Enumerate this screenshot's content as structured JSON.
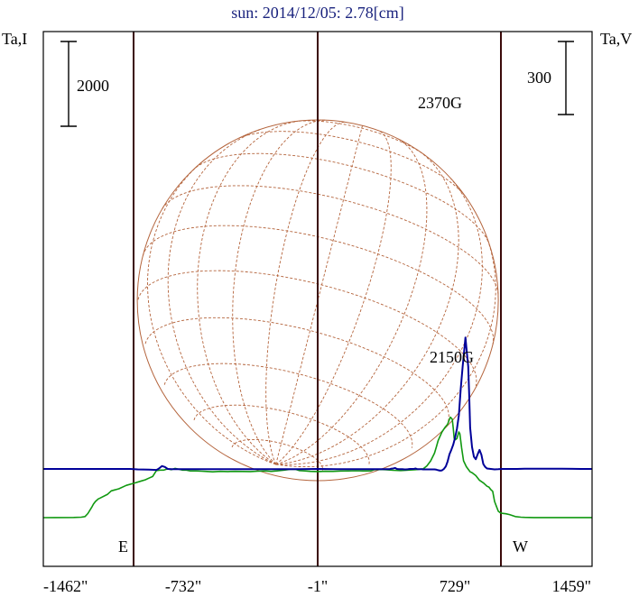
{
  "chart_data": {
    "type": "line",
    "title": "sun: 2014/12/05: 2.78[cm]",
    "left_axis_label": "Ta,I",
    "right_axis_label": "Ta,V",
    "left_scale_label": "2000",
    "right_scale_label": "300",
    "x_ticks": [
      "-1462\"",
      "-732\"",
      "-1\"",
      "729\"",
      "1459\""
    ],
    "limb_labels": {
      "east": "E",
      "west": "W"
    },
    "annotations": [
      "2370G",
      "2150G"
    ],
    "colors": {
      "title": "#1a237e",
      "intensity": "#119911",
      "polarization": "#000099",
      "solar_grid": "#b4643c",
      "markers": "#3b0a0a",
      "frame": "#000000"
    },
    "series": [
      {
        "points": [
          [
            -1462,
            -21
          ],
          [
            -1400,
            -19
          ],
          [
            -1300,
            -16
          ],
          [
            -1260,
            -10
          ],
          [
            -1240,
            5
          ],
          [
            -1225,
            75
          ],
          [
            -1205,
            220
          ],
          [
            -1195,
            300
          ],
          [
            -1185,
            360
          ],
          [
            -1170,
            420
          ],
          [
            -1160,
            440
          ],
          [
            -1120,
            530
          ],
          [
            -1100,
            610
          ],
          [
            -1060,
            660
          ],
          [
            -1020,
            740
          ],
          [
            -980,
            790
          ],
          [
            -940,
            845
          ],
          [
            -920,
            870
          ],
          [
            -900,
            910
          ],
          [
            -880,
            950
          ],
          [
            -860,
            1090
          ],
          [
            -840,
            1100
          ],
          [
            -820,
            1100
          ],
          [
            -800,
            1130
          ],
          [
            -780,
            1110
          ],
          [
            -760,
            1140
          ],
          [
            -740,
            1120
          ],
          [
            -720,
            1100
          ],
          [
            -700,
            1100
          ],
          [
            -680,
            1080
          ],
          [
            -650,
            1080
          ],
          [
            -620,
            1075
          ],
          [
            -600,
            1070
          ],
          [
            -560,
            1060
          ],
          [
            -520,
            1070
          ],
          [
            -480,
            1065
          ],
          [
            -440,
            1070
          ],
          [
            -400,
            1068
          ],
          [
            -360,
            1065
          ],
          [
            -320,
            1075
          ],
          [
            -280,
            1080
          ],
          [
            -250,
            1070
          ],
          [
            -220,
            1080
          ],
          [
            -180,
            1100
          ],
          [
            -150,
            1120
          ],
          [
            -120,
            1120
          ],
          [
            -100,
            1090
          ],
          [
            -70,
            1080
          ],
          [
            -40,
            1070
          ],
          [
            0,
            1065
          ],
          [
            40,
            1072
          ],
          [
            80,
            1070
          ],
          [
            120,
            1078
          ],
          [
            160,
            1080
          ],
          [
            200,
            1085
          ],
          [
            240,
            1080
          ],
          [
            280,
            1080
          ],
          [
            300,
            1110
          ],
          [
            330,
            1115
          ],
          [
            360,
            1110
          ],
          [
            400,
            1095
          ],
          [
            440,
            1090
          ],
          [
            480,
            1100
          ],
          [
            520,
            1110
          ],
          [
            560,
            1130
          ],
          [
            580,
            1200
          ],
          [
            600,
            1320
          ],
          [
            620,
            1500
          ],
          [
            630,
            1640
          ],
          [
            640,
            1800
          ],
          [
            660,
            2000
          ],
          [
            675,
            2100
          ],
          [
            690,
            2180
          ],
          [
            700,
            2300
          ],
          [
            705,
            2350
          ],
          [
            715,
            2300
          ],
          [
            720,
            2090
          ],
          [
            725,
            1850
          ],
          [
            732,
            1820
          ],
          [
            740,
            1850
          ],
          [
            750,
            2000
          ],
          [
            755,
            1960
          ],
          [
            765,
            1620
          ],
          [
            775,
            1320
          ],
          [
            790,
            1180
          ],
          [
            800,
            1120
          ],
          [
            810,
            1060
          ],
          [
            820,
            1040
          ],
          [
            840,
            970
          ],
          [
            860,
            860
          ],
          [
            880,
            800
          ],
          [
            890,
            760
          ],
          [
            900,
            720
          ],
          [
            910,
            700
          ],
          [
            920,
            640
          ],
          [
            930,
            600
          ],
          [
            940,
            360
          ],
          [
            950,
            240
          ],
          [
            960,
            130
          ],
          [
            970,
            95
          ],
          [
            980,
            80
          ],
          [
            1000,
            70
          ],
          [
            1020,
            50
          ],
          [
            1050,
            5
          ],
          [
            1080,
            -10
          ],
          [
            1100,
            -15
          ],
          [
            1150,
            -20
          ],
          [
            1459,
            -20
          ]
        ]
      },
      {
        "points": [
          [
            -1462,
            0
          ],
          [
            -1400,
            0
          ],
          [
            -1300,
            0
          ],
          [
            -1200,
            0
          ],
          [
            -1100,
            0
          ],
          [
            -1000,
            0
          ],
          [
            -960,
            -2
          ],
          [
            -900,
            -3
          ],
          [
            -860,
            -4
          ],
          [
            -850,
            0
          ],
          [
            -840,
            6
          ],
          [
            -830,
            12
          ],
          [
            -815,
            8
          ],
          [
            -800,
            0
          ],
          [
            -780,
            -1
          ],
          [
            -760,
            -1
          ],
          [
            -740,
            -1
          ],
          [
            -700,
            -1
          ],
          [
            -600,
            -1
          ],
          [
            -500,
            -1
          ],
          [
            -400,
            -1
          ],
          [
            -320,
            -1
          ],
          [
            -300,
            -1
          ],
          [
            -250,
            -1
          ],
          [
            -200,
            -1
          ],
          [
            -100,
            -1
          ],
          [
            0,
            0
          ],
          [
            100,
            -1
          ],
          [
            200,
            -1
          ],
          [
            300,
            -1
          ],
          [
            380,
            -1
          ],
          [
            390,
            1
          ],
          [
            400,
            2
          ],
          [
            410,
            4
          ],
          [
            420,
            0
          ],
          [
            430,
            -1
          ],
          [
            440,
            -1
          ],
          [
            450,
            -1
          ],
          [
            460,
            -2
          ],
          [
            470,
            -2
          ],
          [
            480,
            -1
          ],
          [
            490,
            0
          ],
          [
            500,
            0
          ],
          [
            510,
            0
          ],
          [
            520,
            2
          ],
          [
            530,
            -1
          ],
          [
            540,
            -1
          ],
          [
            550,
            -1
          ],
          [
            560,
            -2
          ],
          [
            580,
            -2
          ],
          [
            600,
            -2
          ],
          [
            620,
            -2
          ],
          [
            630,
            -3
          ],
          [
            640,
            -5
          ],
          [
            650,
            -7
          ],
          [
            660,
            -6
          ],
          [
            670,
            0
          ],
          [
            680,
            10
          ],
          [
            690,
            30
          ],
          [
            700,
            60
          ],
          [
            710,
            79
          ],
          [
            720,
            100
          ],
          [
            730,
            130
          ],
          [
            740,
            165
          ],
          [
            750,
            220
          ],
          [
            760,
            330
          ],
          [
            770,
            420
          ],
          [
            780,
            500
          ],
          [
            785,
            540
          ],
          [
            790,
            500
          ],
          [
            800,
            420
          ],
          [
            805,
            300
          ],
          [
            810,
            170
          ],
          [
            820,
            90
          ],
          [
            830,
            50
          ],
          [
            840,
            40
          ],
          [
            850,
            60
          ],
          [
            860,
            78
          ],
          [
            870,
            58
          ],
          [
            880,
            20
          ],
          [
            890,
            8
          ],
          [
            900,
            2
          ],
          [
            920,
            0
          ],
          [
            940,
            -2
          ],
          [
            960,
            -1
          ],
          [
            980,
            0
          ],
          [
            1000,
            0
          ],
          [
            1020,
            0
          ],
          [
            1060,
            0
          ],
          [
            1100,
            1
          ],
          [
            1120,
            1
          ],
          [
            1140,
            1
          ],
          [
            1160,
            1
          ],
          [
            1200,
            1
          ],
          [
            1300,
            1
          ],
          [
            1400,
            0
          ],
          [
            1459,
            0
          ]
        ]
      }
    ],
    "disk_markers": [
      "-1462\"",
      "-732\"",
      "-1\"",
      "729\"",
      "1459\""
    ]
  }
}
